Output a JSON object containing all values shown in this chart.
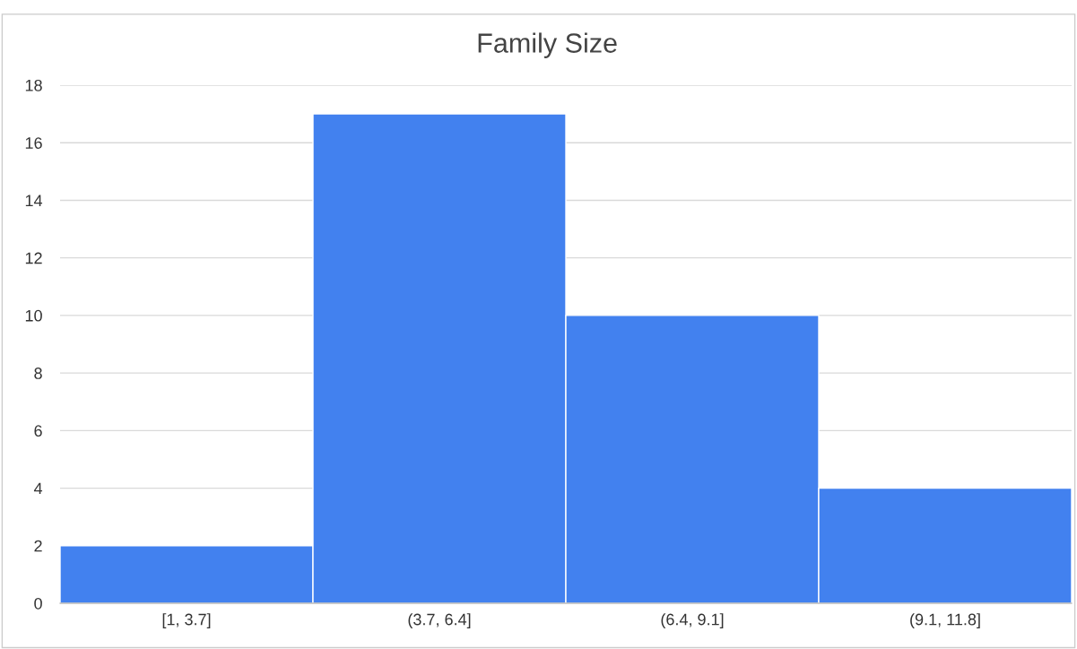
{
  "chart_data": {
    "type": "bar",
    "title": "Family Size",
    "categories": [
      "[1, 3.7]",
      "(3.7, 6.4]",
      "(6.4, 9.1]",
      "(9.1, 11.8]"
    ],
    "values": [
      2,
      17,
      10,
      4
    ],
    "color": "#4281ef",
    "ylim": [
      0,
      18
    ],
    "yticks": [
      0,
      2,
      4,
      6,
      8,
      10,
      12,
      14,
      16,
      18
    ],
    "grid": "y",
    "legend": false
  }
}
